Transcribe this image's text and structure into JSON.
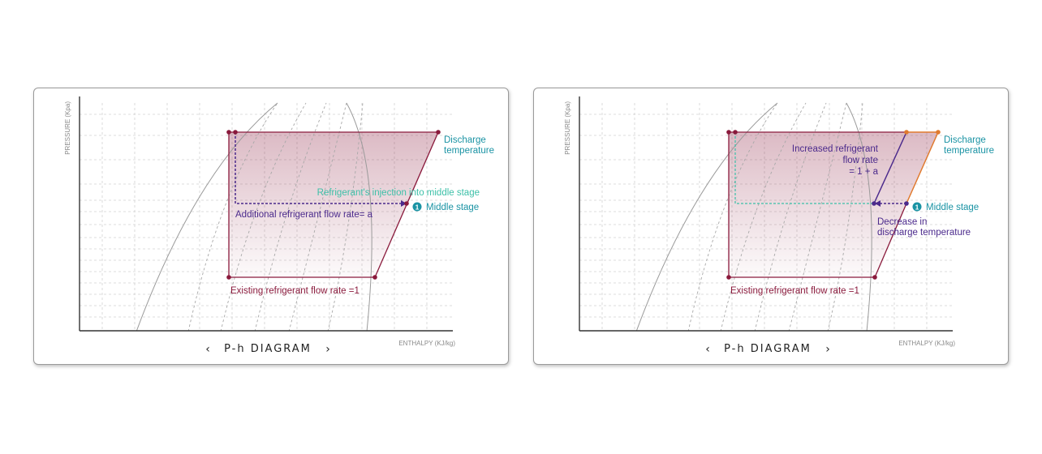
{
  "colors": {
    "maroon": "#8a1a3c",
    "purple": "#4b2a8c",
    "teal": "#1a93a4",
    "mint": "#3cc0a8",
    "orange": "#e07a2e",
    "grid": "#cfcfcf",
    "curve": "#9a9a9a",
    "isotherm": "#a8a8a8"
  },
  "left_panel": {
    "y_axis_label": "PRESSURE (Kpa)",
    "x_axis_label": "ENTHALPY (KJ/kg)",
    "title": "P-h DIAGRAM",
    "prev_arrow": "‹",
    "next_arrow": "›",
    "discharge_line1": "Discharge",
    "discharge_line2": "temperature",
    "injection_label": "Refrigerant's injection into middle stage",
    "additional_flow_label": "Additional refrigerant flow rate= a",
    "middle_stage_number": "1",
    "middle_stage_label": "Middle stage",
    "existing_flow_label": "Existing refrigerant flow rate =1"
  },
  "right_panel": {
    "y_axis_label": "PRESSURE (Kpa)",
    "x_axis_label": "ENTHALPY (KJ/kg)",
    "title": "P-h DIAGRAM",
    "prev_arrow": "‹",
    "next_arrow": "›",
    "discharge_line1": "Discharge",
    "discharge_line2": "temperature",
    "increased_line1": "Increased refrigerant",
    "increased_line2": "flow rate",
    "increased_line3": "= 1 + a",
    "middle_stage_number": "1",
    "middle_stage_label": "Middle stage",
    "decrease_line1": "Decrease in",
    "decrease_line2": "discharge temperature",
    "existing_flow_label": "Existing refrigerant flow rate =1"
  }
}
